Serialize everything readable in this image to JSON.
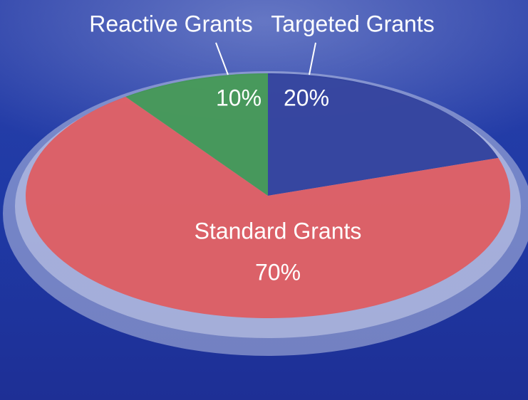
{
  "chart_data": {
    "type": "pie",
    "categories": [
      "Targeted Grants",
      "Standard Grants",
      "Reactive Grants"
    ],
    "values": [
      20,
      70,
      10
    ],
    "value_labels": [
      "20%",
      "70%",
      "10%"
    ],
    "colors": [
      "#2c3d9a",
      "#e05a5e",
      "#3f9650"
    ]
  }
}
